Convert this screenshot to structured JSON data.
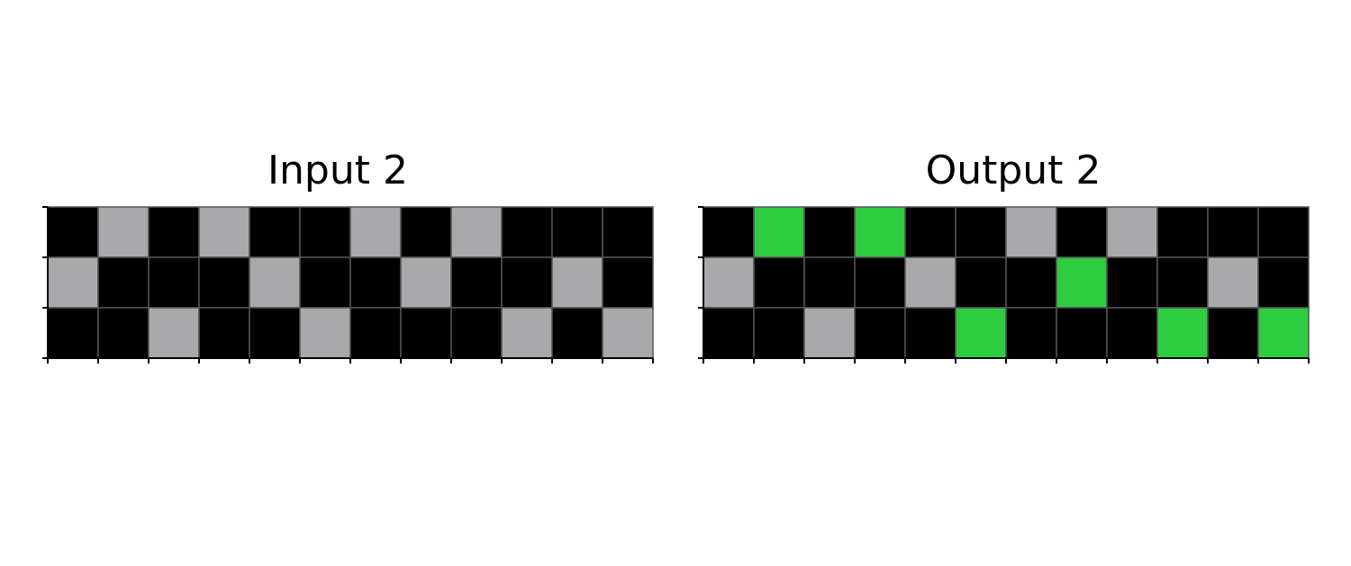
{
  "palette": {
    "0": "#000000",
    "5": "#a9a8aa",
    "3": "#2ecc40"
  },
  "grid_line_color": "#555555",
  "panels": [
    {
      "title": "Input 2",
      "grid": [
        [
          0,
          5,
          0,
          5,
          0,
          0,
          5,
          0,
          5,
          0,
          0,
          0
        ],
        [
          5,
          0,
          0,
          0,
          5,
          0,
          0,
          5,
          0,
          0,
          5,
          0
        ],
        [
          0,
          0,
          5,
          0,
          0,
          5,
          0,
          0,
          0,
          5,
          0,
          5
        ]
      ]
    },
    {
      "title": "Output 2",
      "grid": [
        [
          0,
          3,
          0,
          3,
          0,
          0,
          5,
          0,
          5,
          0,
          0,
          0
        ],
        [
          5,
          0,
          0,
          0,
          5,
          0,
          0,
          3,
          0,
          0,
          5,
          0
        ],
        [
          0,
          0,
          5,
          0,
          0,
          3,
          0,
          0,
          0,
          3,
          0,
          3
        ]
      ]
    }
  ]
}
